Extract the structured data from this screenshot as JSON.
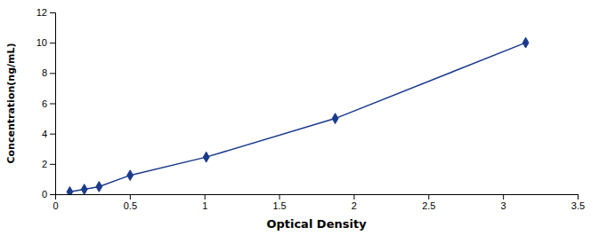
{
  "chart_data": {
    "type": "line",
    "x": [
      0.098,
      0.195,
      0.294,
      0.502,
      1.012,
      1.876,
      3.152
    ],
    "values": [
      0.156,
      0.32,
      0.5,
      1.25,
      2.45,
      5.0,
      10.0
    ],
    "color": "#1A3A8C",
    "marker": "diamond",
    "line_style": "solid",
    "xlabel": "Optical Density",
    "ylabel": "Concentration(ng/mL)",
    "xlim": [
      0,
      3.5
    ],
    "ylim": [
      0,
      12
    ],
    "xticks": [
      0.0,
      0.5,
      1.0,
      1.5,
      2.0,
      2.5,
      3.0,
      3.5
    ],
    "yticks": [
      0,
      2,
      4,
      6,
      8,
      10,
      12
    ]
  }
}
